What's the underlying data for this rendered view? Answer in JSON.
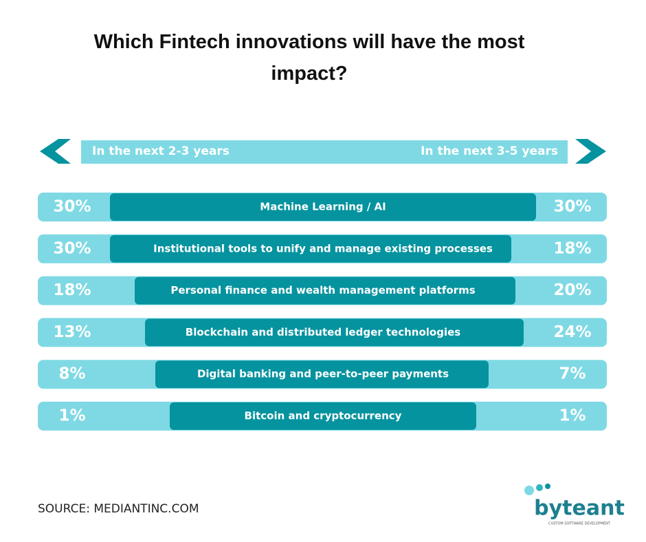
{
  "chart_data": {
    "type": "diverging",
    "title": "Which Fintech innovations will have the most impact?",
    "categories": [
      "Machine Learning / AI",
      "Institutional tools to unify and manage existing processes",
      "Personal finance and wealth management platforms",
      "Blockchain and distributed ledger technologies",
      "Digital banking and peer-to-peer payments",
      "Bitcoin and cryptocurrency"
    ],
    "series": [
      {
        "name": "In the next 2-3 years",
        "color": "#7fd9e4",
        "values": [
          30,
          30,
          18,
          13,
          8,
          1
        ],
        "value_labels": [
          "30%",
          "30%",
          "18%",
          "13%",
          "8%",
          "1%"
        ]
      },
      {
        "name": "In the next 3-5 years",
        "color": "#05939f",
        "values": [
          30,
          18,
          20,
          24,
          7,
          1
        ],
        "value_labels": [
          "30%",
          "18%",
          "20%",
          "24%",
          "7%",
          "1%"
        ]
      }
    ],
    "source": "SOURCE: MEDIANTINC.COM",
    "logo": {
      "name": "byteant",
      "tagline": "CUSTOM SOFTWARE DEVELOPMENT"
    }
  }
}
